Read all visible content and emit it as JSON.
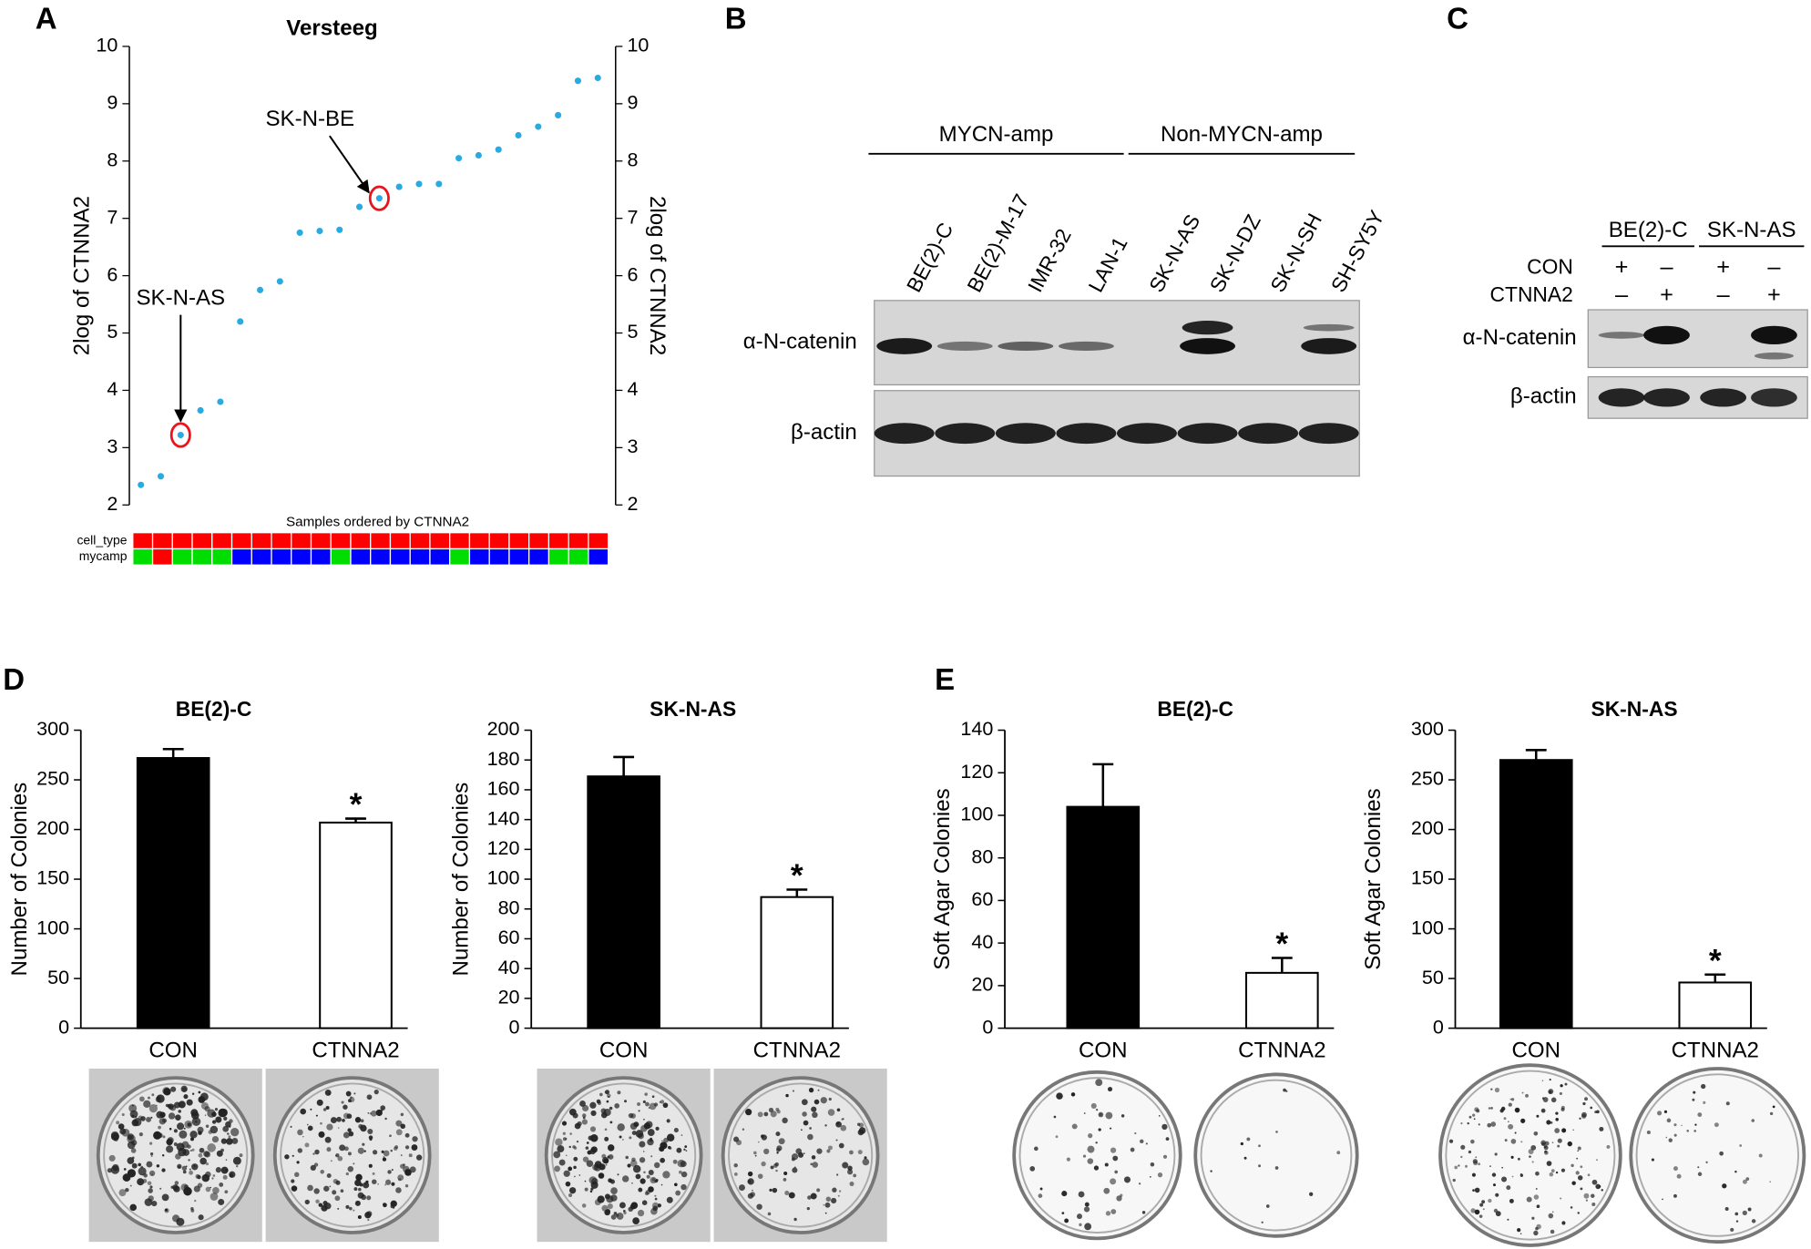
{
  "panel_labels": [
    "A",
    "B",
    "C",
    "D",
    "E"
  ],
  "chart_data": [
    {
      "type": "scatter",
      "title": "Versteeg",
      "ylabel": "2log of CTNNA2",
      "y2label": "2log of CTNNA2",
      "values": [
        2.35,
        2.5,
        3.22,
        3.65,
        3.8,
        5.2,
        5.75,
        5.9,
        6.75,
        6.78,
        6.8,
        7.2,
        7.35,
        7.55,
        7.6,
        7.6,
        8.05,
        8.1,
        8.2,
        8.45,
        8.6,
        8.8,
        9.4,
        9.45
      ],
      "color": "#29abe2",
      "ylim": [
        2,
        10
      ],
      "yticks": [
        2,
        3,
        4,
        5,
        6,
        7,
        8,
        9,
        10
      ],
      "y2lim": [
        2,
        10
      ],
      "y2ticks": [
        2,
        3,
        4,
        5,
        6,
        7,
        8,
        9,
        10
      ],
      "annotations": [
        {
          "text": "SK-N-AS",
          "index": 2
        },
        {
          "text": "SK-N-BE",
          "index": 12
        }
      ],
      "track_title": "Samples ordered by CTNNA2",
      "tracks": [
        {
          "name": "cell_type",
          "colors": [
            "#ff0000",
            "#ff0000",
            "#ff0000",
            "#ff0000",
            "#ff0000",
            "#ff0000",
            "#ff0000",
            "#ff0000",
            "#ff0000",
            "#ff0000",
            "#ff0000",
            "#ff0000",
            "#ff0000",
            "#ff0000",
            "#ff0000",
            "#ff0000",
            "#ff0000",
            "#ff0000",
            "#ff0000",
            "#ff0000",
            "#ff0000",
            "#ff0000",
            "#ff0000",
            "#ff0000"
          ]
        },
        {
          "name": "mycamp",
          "colors": [
            "#00dd00",
            "#ff0000",
            "#00dd00",
            "#00dd00",
            "#00dd00",
            "#0000ff",
            "#0000ff",
            "#0000ff",
            "#0000ff",
            "#0000ff",
            "#00dd00",
            "#0000ff",
            "#0000ff",
            "#0000ff",
            "#0000ff",
            "#0000ff",
            "#00dd00",
            "#0000ff",
            "#0000ff",
            "#0000ff",
            "#0000ff",
            "#00dd00",
            "#00dd00",
            "#0000ff"
          ]
        }
      ]
    },
    {
      "type": "bar",
      "title": "BE(2)-C",
      "ylabel": "Number of Colonies",
      "categories": [
        "CON",
        "CTNNA2"
      ],
      "values": [
        272,
        207
      ],
      "errors": [
        9,
        4
      ],
      "colors": [
        "#000000",
        "#ffffff"
      ],
      "ylim": [
        0,
        300
      ],
      "yticks": [
        0,
        50,
        100,
        150,
        200,
        250,
        300
      ],
      "annotations": [
        {
          "text": "*",
          "index": 1
        }
      ]
    },
    {
      "type": "bar",
      "title": "SK-N-AS",
      "ylabel": "Number of Colonies",
      "categories": [
        "CON",
        "CTNNA2"
      ],
      "values": [
        169,
        88
      ],
      "errors": [
        13,
        5
      ],
      "colors": [
        "#000000",
        "#ffffff"
      ],
      "ylim": [
        0,
        200
      ],
      "yticks": [
        0,
        20,
        40,
        60,
        80,
        100,
        120,
        140,
        160,
        180,
        200
      ],
      "annotations": [
        {
          "text": "*",
          "index": 1
        }
      ]
    },
    {
      "type": "bar",
      "title": "BE(2)-C",
      "ylabel": "Soft Agar Colonies",
      "categories": [
        "CON",
        "CTNNA2"
      ],
      "values": [
        104,
        26
      ],
      "errors": [
        20,
        7
      ],
      "colors": [
        "#000000",
        "#ffffff"
      ],
      "ylim": [
        0,
        140
      ],
      "yticks": [
        0,
        20,
        40,
        60,
        80,
        100,
        120,
        140
      ],
      "annotations": [
        {
          "text": "*",
          "index": 1
        }
      ]
    },
    {
      "type": "bar",
      "title": "SK-N-AS",
      "ylabel": "Soft Agar Colonies",
      "categories": [
        "CON",
        "CTNNA2"
      ],
      "values": [
        270,
        46
      ],
      "errors": [
        10,
        8
      ],
      "colors": [
        "#000000",
        "#ffffff"
      ],
      "ylim": [
        0,
        300
      ],
      "yticks": [
        0,
        50,
        100,
        150,
        200,
        250,
        300
      ],
      "annotations": [
        {
          "text": "*",
          "index": 1
        }
      ]
    }
  ],
  "blot_b": {
    "groups": [
      "MYCN-amp",
      "Non-MYCN-amp"
    ],
    "lanes": [
      "BE(2)-C",
      "BE(2)-M-17",
      "IMR-32",
      "LAN-1",
      "SK-N-AS",
      "SK-N-DZ",
      "SK-N-SH",
      "SH-SY5Y"
    ],
    "rows": [
      "α-N-catenin",
      "β-actin"
    ]
  },
  "blot_c": {
    "groups": [
      "BE(2)-C",
      "SK-N-AS"
    ],
    "conditions": [
      {
        "name": "CON",
        "signs": [
          "+",
          "–",
          "+",
          "–"
        ]
      },
      {
        "name": "CTNNA2",
        "signs": [
          "–",
          "+",
          "–",
          "+"
        ]
      }
    ],
    "rows": [
      "α-N-catenin",
      "β-actin"
    ]
  }
}
